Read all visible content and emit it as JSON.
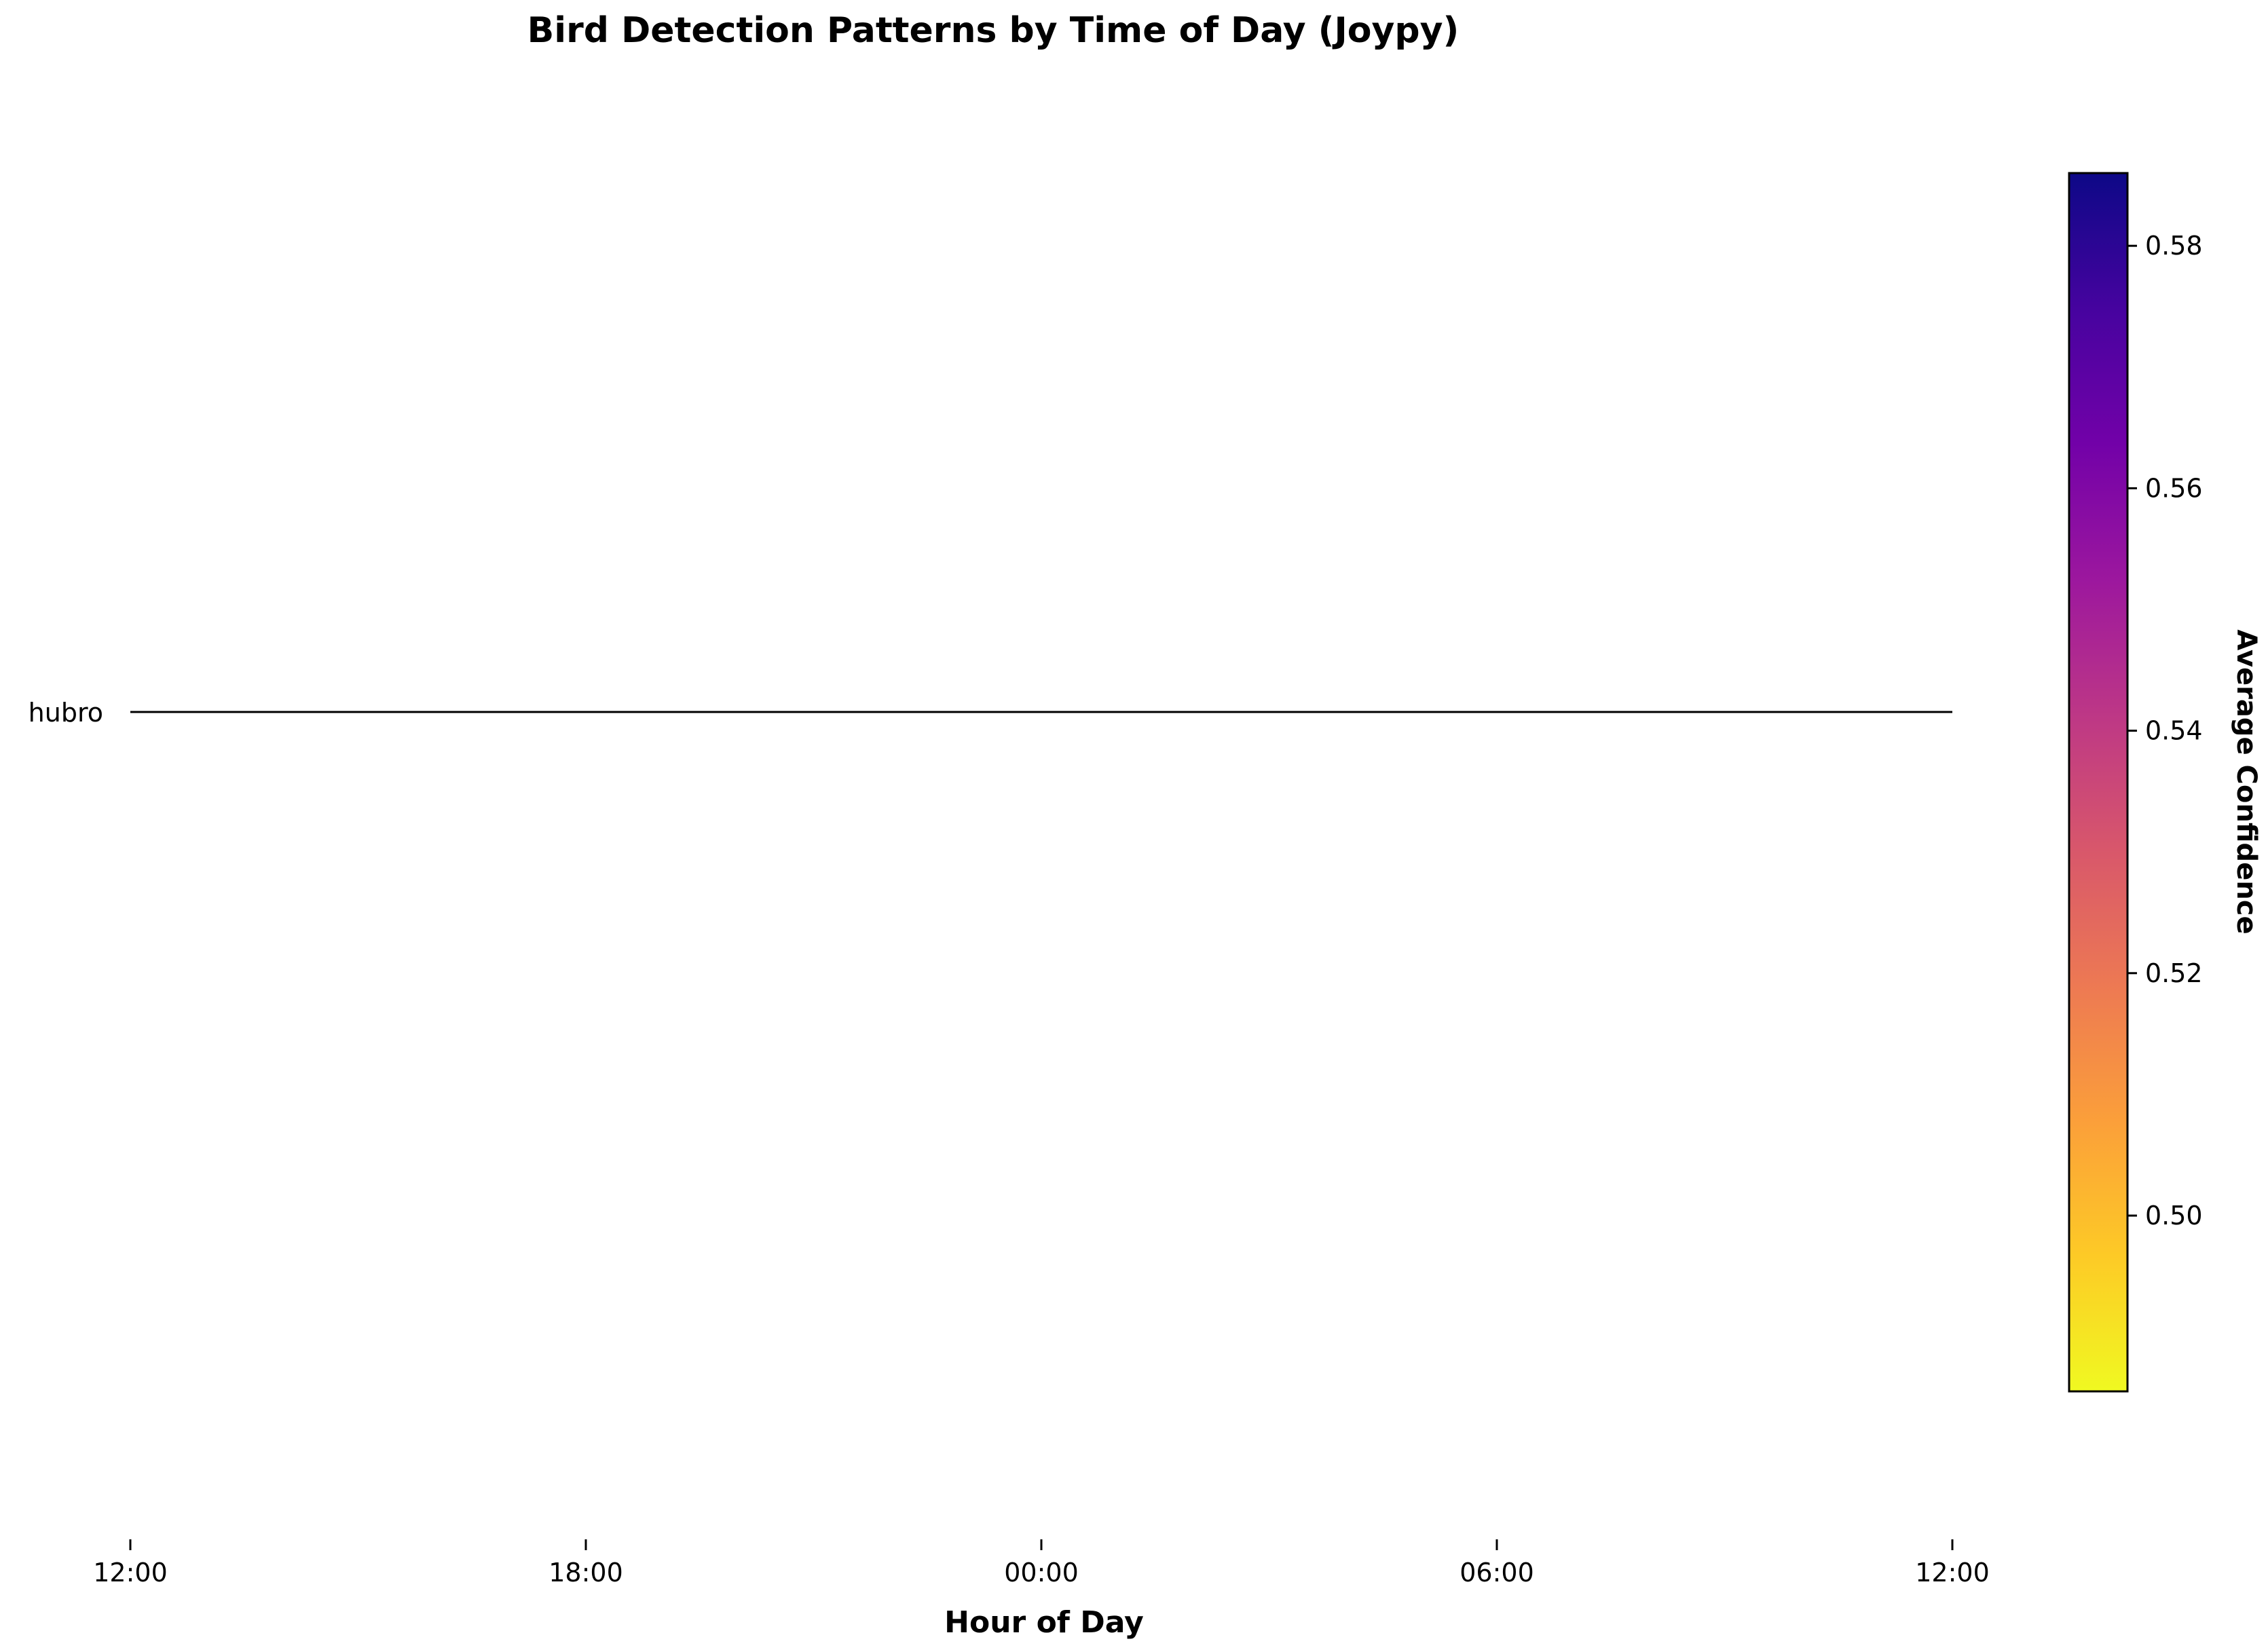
{
  "chart_data": {
    "type": "area",
    "title": "Bird Detection Patterns by Time of Day (Joypy)",
    "xlabel": "Hour of Day",
    "ylabel": "",
    "x_ticks": [
      "12:00",
      "18:00",
      "00:00",
      "06:00",
      "12:00"
    ],
    "x_range_hours": [
      12,
      36
    ],
    "series": [
      {
        "name": "hubro",
        "x": [
          12,
          36
        ],
        "density": [
          0,
          0
        ]
      }
    ],
    "colorbar": {
      "label": "Average Confidence",
      "colormap": "plasma_r",
      "range": [
        0.4855,
        0.586
      ],
      "ticks": [
        "0.50",
        "0.52",
        "0.54",
        "0.56",
        "0.58"
      ],
      "tick_values": [
        0.5,
        0.52,
        0.54,
        0.56,
        0.58
      ],
      "gradient_colors": [
        "#f0f921",
        "#fdca26",
        "#fb9f3a",
        "#ed7953",
        "#d8576b",
        "#bd3786",
        "#9c179e",
        "#7201a8",
        "#46039f",
        "#0d0887"
      ]
    },
    "grid": false
  }
}
